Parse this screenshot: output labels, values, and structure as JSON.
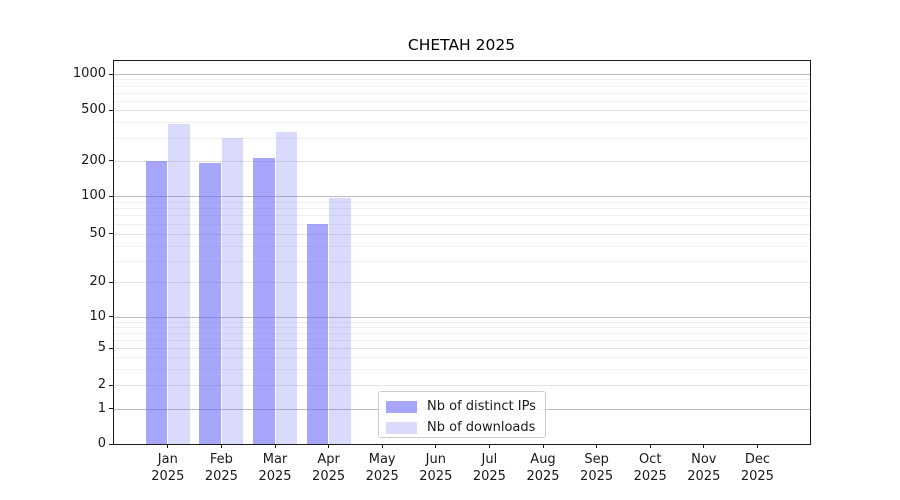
{
  "chart_data": {
    "type": "bar",
    "title": "CHETAH 2025",
    "categories": [
      "Jan",
      "Feb",
      "Mar",
      "Apr",
      "May",
      "Jun",
      "Jul",
      "Aug",
      "Sep",
      "Oct",
      "Nov",
      "Dec"
    ],
    "x_year_suffix": "2025",
    "series": [
      {
        "name": "Nb of distinct IPs",
        "color": "rgba(102,102,248,0.58)",
        "values": [
          197,
          190,
          208,
          60,
          0,
          0,
          0,
          0,
          0,
          0,
          0,
          0
        ]
      },
      {
        "name": "Nb of downloads",
        "color": "rgba(102,102,248,0.24)",
        "values": [
          385,
          300,
          335,
          97,
          0,
          0,
          0,
          0,
          0,
          0,
          0,
          0
        ]
      }
    ],
    "y_axis": {
      "scale": "symlog",
      "ticks": [
        0,
        1,
        2,
        5,
        10,
        20,
        50,
        100,
        200,
        500,
        1000
      ]
    },
    "legend": {
      "position": "lower center"
    },
    "grid": true,
    "colors": {
      "grid_major": "#bdbdbd",
      "grid_minor": "#f0f0f0",
      "axis": "#1a1a1a"
    }
  }
}
